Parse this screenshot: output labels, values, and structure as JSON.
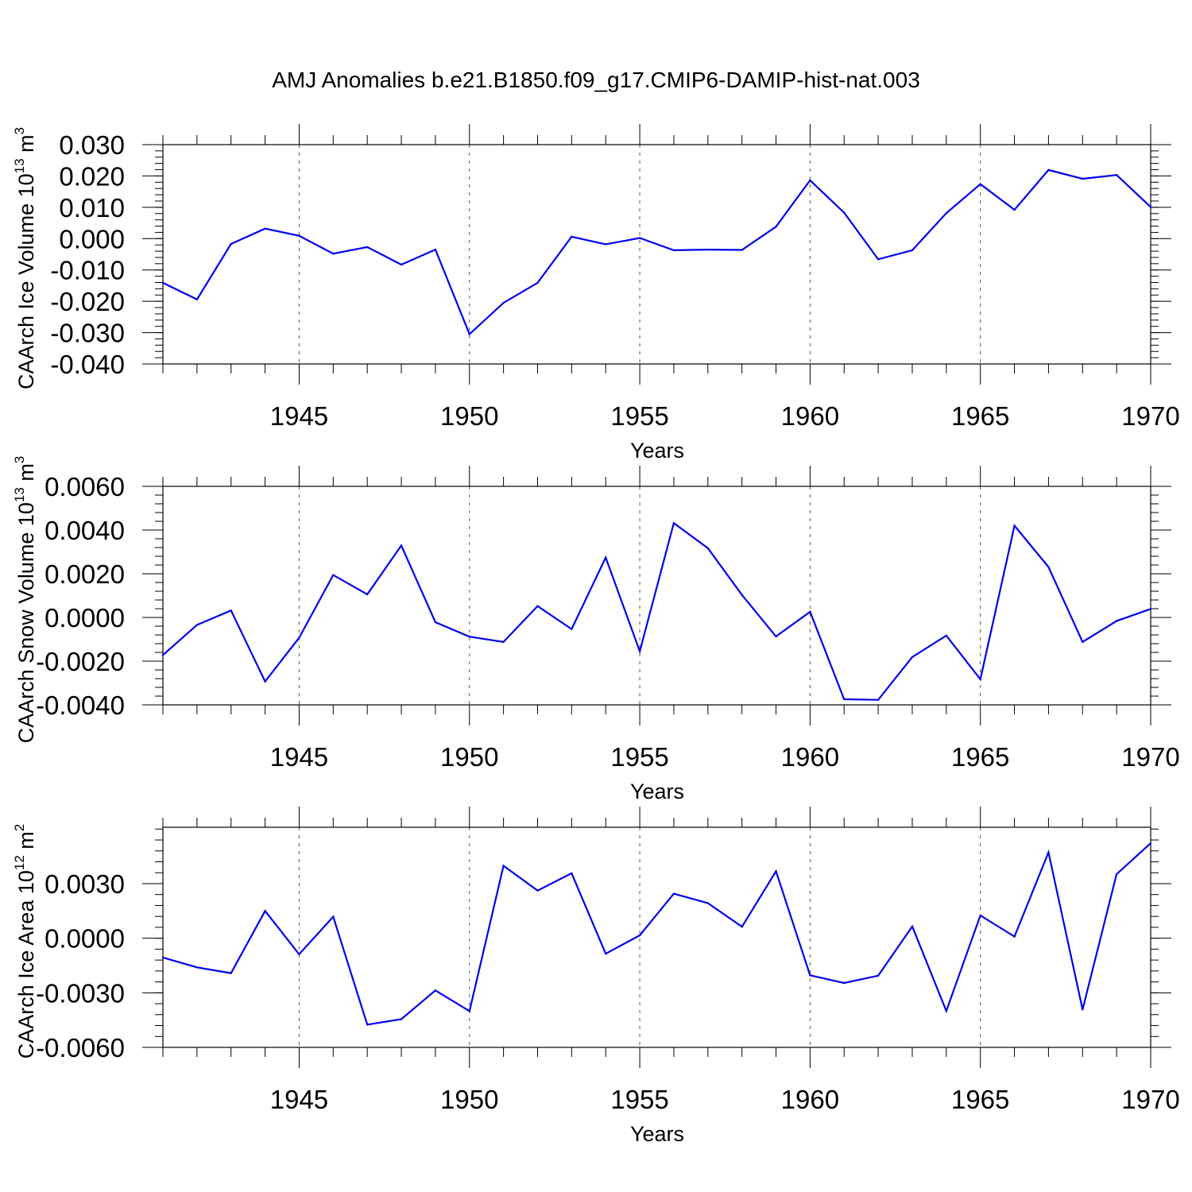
{
  "title": "AMJ Anomalies b.e21.B1850.f09_g17.CMIP6-DAMIP-hist-nat.003",
  "colors": {
    "line": "#0000ee",
    "axis": "#000000",
    "grid": "#555555"
  },
  "chart_data": [
    {
      "type": "line",
      "xlabel": "Years",
      "ylabel_prefix": "CAArch Ice Volume 10",
      "ylabel_exp": "13",
      "ylabel_unit": "m",
      "ylabel_unit_exp": "3",
      "xlim": [
        1941,
        1970
      ],
      "ylim": [
        -0.04,
        0.03
      ],
      "xticks": [
        1945,
        1950,
        1955,
        1960,
        1965,
        1970
      ],
      "yticks": [
        -0.04,
        -0.03,
        -0.02,
        -0.01,
        0.0,
        0.01,
        0.02,
        0.03
      ],
      "ytick_labels": [
        "-0.040",
        "-0.030",
        "-0.020",
        "-0.010",
        "0.000",
        "0.010",
        "0.020",
        "0.030"
      ],
      "x": [
        1941,
        1942,
        1943,
        1944,
        1945,
        1946,
        1947,
        1948,
        1949,
        1950,
        1951,
        1952,
        1953,
        1954,
        1955,
        1956,
        1957,
        1958,
        1959,
        1960,
        1961,
        1962,
        1963,
        1964,
        1965,
        1966,
        1967,
        1968,
        1969,
        1970
      ],
      "y": [
        -0.0141,
        -0.0194,
        -0.0017,
        0.0032,
        0.0009,
        -0.0048,
        -0.0027,
        -0.0083,
        -0.0035,
        -0.0305,
        -0.0205,
        -0.0141,
        0.0006,
        -0.0018,
        0.0002,
        -0.0037,
        -0.0035,
        -0.0036,
        0.0038,
        0.0186,
        0.0083,
        -0.0066,
        -0.0037,
        0.0081,
        0.0174,
        0.0092,
        0.0219,
        0.0191,
        0.0203,
        0.0101
      ]
    },
    {
      "type": "line",
      "xlabel": "Years",
      "ylabel_prefix": "CAArch Snow Volume 10",
      "ylabel_exp": "13",
      "ylabel_unit": "m",
      "ylabel_unit_exp": "3",
      "xlim": [
        1941,
        1970
      ],
      "ylim": [
        -0.004,
        0.006
      ],
      "xticks": [
        1945,
        1950,
        1955,
        1960,
        1965,
        1970
      ],
      "yticks": [
        -0.004,
        -0.002,
        0.0,
        0.002,
        0.004,
        0.006
      ],
      "ytick_labels": [
        "-0.0040",
        "-0.0020",
        "0.0000",
        "0.0020",
        "0.0040",
        "0.0060"
      ],
      "x": [
        1941,
        1942,
        1943,
        1944,
        1945,
        1946,
        1947,
        1948,
        1949,
        1950,
        1951,
        1952,
        1953,
        1954,
        1955,
        1956,
        1957,
        1958,
        1959,
        1960,
        1961,
        1962,
        1963,
        1964,
        1965,
        1966,
        1967,
        1968,
        1969,
        1970
      ],
      "y": [
        -0.00172,
        -0.00034,
        0.00032,
        -0.00293,
        -0.00093,
        0.00194,
        0.00106,
        0.00329,
        -0.00022,
        -0.00088,
        -0.00112,
        0.00052,
        -0.00053,
        0.00274,
        -0.00155,
        0.00432,
        0.00317,
        0.00103,
        -0.00087,
        0.00026,
        -0.00374,
        -0.00377,
        -0.00181,
        -0.00083,
        -0.00283,
        0.0042,
        0.00231,
        -0.00112,
        -0.00016,
        0.00039
      ]
    },
    {
      "type": "line",
      "xlabel": "Years",
      "ylabel_prefix": "CAArch Ice Area 10",
      "ylabel_exp": "12",
      "ylabel_unit": "m",
      "ylabel_unit_exp": "2",
      "xlim": [
        1941,
        1970
      ],
      "ylim": [
        -0.006,
        0.0061
      ],
      "xticks": [
        1945,
        1950,
        1955,
        1960,
        1965,
        1970
      ],
      "yticks": [
        -0.006,
        -0.003,
        0.0,
        0.003
      ],
      "ytick_labels": [
        "-0.0060",
        "-0.0030",
        "0.0000",
        "0.0030"
      ],
      "x": [
        1941,
        1942,
        1943,
        1944,
        1945,
        1946,
        1947,
        1948,
        1949,
        1950,
        1951,
        1952,
        1953,
        1954,
        1955,
        1956,
        1957,
        1958,
        1959,
        1960,
        1961,
        1962,
        1963,
        1964,
        1965,
        1966,
        1967,
        1968,
        1969,
        1970
      ],
      "y": [
        -0.00106,
        -0.0016,
        -0.00192,
        0.0015,
        -0.00088,
        0.00118,
        -0.00475,
        -0.00445,
        -0.00287,
        -0.00401,
        0.00398,
        0.00262,
        0.00357,
        -0.00085,
        0.00016,
        0.00245,
        0.00193,
        0.00063,
        0.00368,
        -0.00204,
        -0.00246,
        -0.00206,
        0.00065,
        -0.004,
        0.00125,
        9e-05,
        0.00472,
        -0.00392,
        0.00352,
        0.00522
      ]
    }
  ]
}
